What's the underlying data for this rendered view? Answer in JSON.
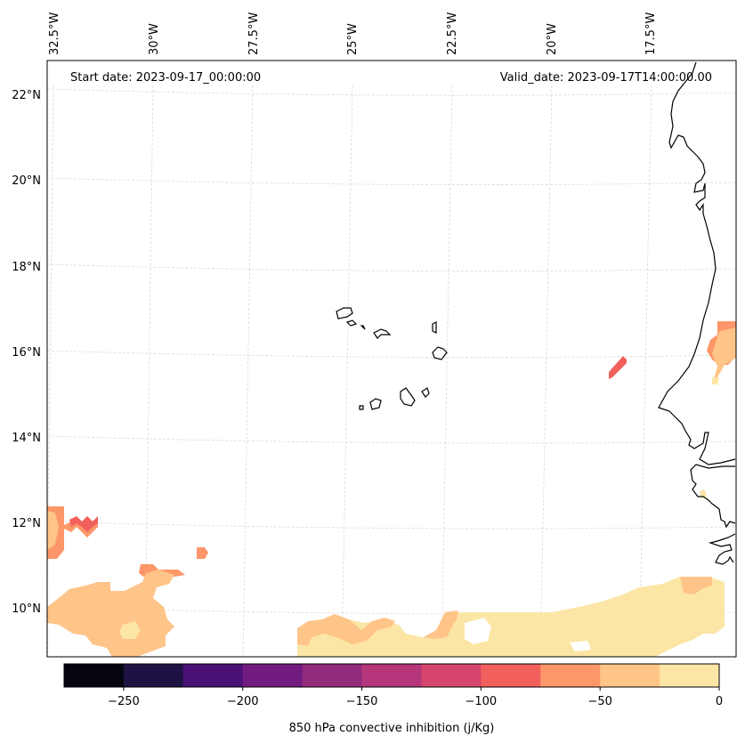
{
  "map": {
    "start_label": "Start date: 2023-09-17_00:00:00",
    "valid_label": "Valid_date: 2023-09-17T14:00:00.00",
    "lon_labels": [
      "32.5°W",
      "30°W",
      "27.5°W",
      "25°W",
      "22.5°W",
      "20°W",
      "17.5°W"
    ],
    "lat_labels": [
      "22°N",
      "20°N",
      "18°N",
      "16°N",
      "14°N",
      "12°N",
      "10°N"
    ],
    "fill_colors": {
      "very_light": "#fce6a6",
      "light": "#fec488",
      "mid": "#fd9668",
      "red": "#f1605d",
      "coast": "#000000",
      "grid": "#d9d9d9"
    }
  },
  "colorbar": {
    "label": "850 hPa convective inhibition (j/Kg)",
    "tick_labels": [
      "−250",
      "−200",
      "−150",
      "−100",
      "−50",
      "0"
    ],
    "tick_values": [
      -250,
      -200,
      -150,
      -100,
      -50,
      0
    ],
    "range": [
      -275,
      0
    ],
    "bins": [
      {
        "from": -275,
        "to": -250,
        "color": "#05050f"
      },
      {
        "from": -250,
        "to": -225,
        "color": "#1e1245"
      },
      {
        "from": -225,
        "to": -200,
        "color": "#4a1177"
      },
      {
        "from": -200,
        "to": -175,
        "color": "#721c81"
      },
      {
        "from": -175,
        "to": -150,
        "color": "#932b7d"
      },
      {
        "from": -150,
        "to": -125,
        "color": "#b5367a"
      },
      {
        "from": -125,
        "to": -100,
        "color": "#d6456c"
      },
      {
        "from": -100,
        "to": -75,
        "color": "#f1605d"
      },
      {
        "from": -75,
        "to": -50,
        "color": "#fd9668"
      },
      {
        "from": -50,
        "to": -25,
        "color": "#fec488"
      },
      {
        "from": -25,
        "to": 0,
        "color": "#fce6a6"
      }
    ]
  }
}
